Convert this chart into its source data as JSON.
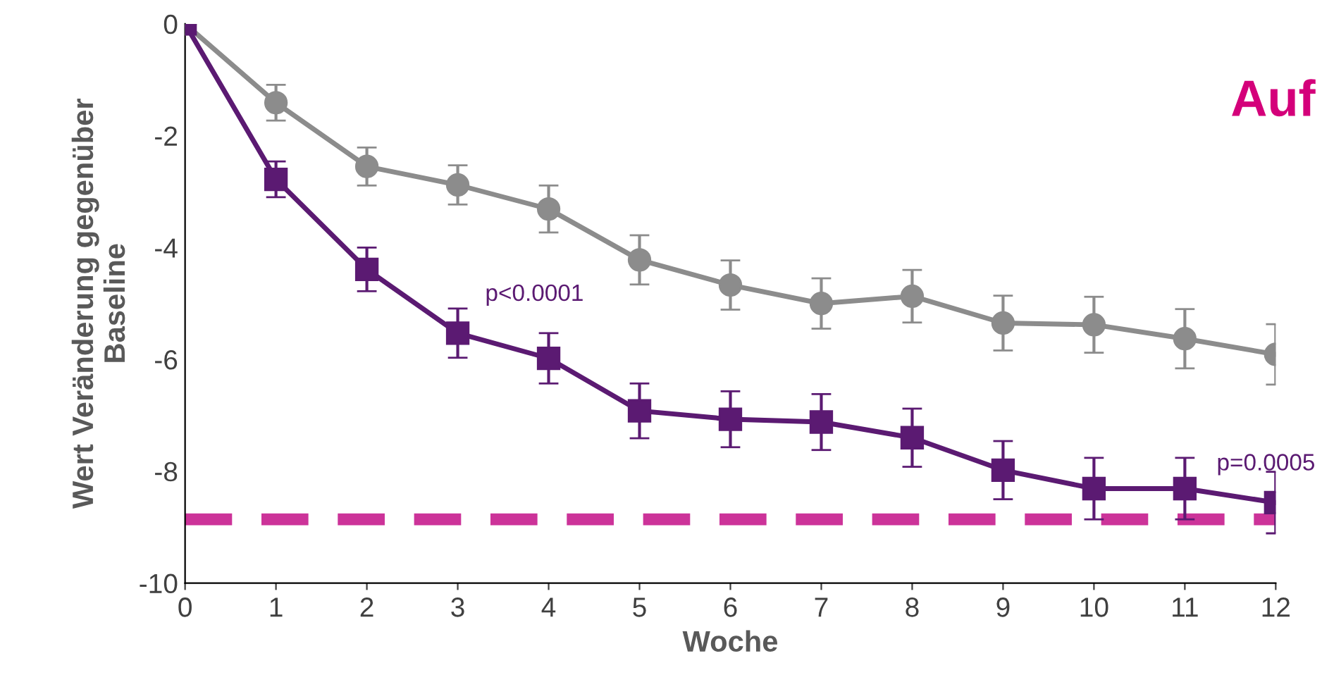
{
  "chart_data": {
    "type": "line",
    "xlabel": "Woche",
    "ylabel": "Wert Veränderung gegenüber\nBaseline",
    "x": [
      0,
      1,
      2,
      3,
      4,
      5,
      6,
      7,
      8,
      9,
      10,
      11,
      12
    ],
    "series": [
      {
        "color": "#8c8c8c",
        "marker": "circle",
        "values": [
          0,
          -1.41,
          -2.55,
          -2.88,
          -3.31,
          -4.22,
          -4.67,
          -5.0,
          -4.87,
          -5.35,
          -5.38,
          -5.63,
          -5.91
        ],
        "errors": [
          null,
          0.32,
          0.34,
          0.35,
          0.42,
          0.44,
          0.44,
          0.45,
          0.47,
          0.49,
          0.5,
          0.53,
          0.54
        ]
      },
      {
        "color": "#5b1a72",
        "marker": "square",
        "values": [
          0,
          -2.78,
          -4.39,
          -5.53,
          -5.98,
          -6.92,
          -7.07,
          -7.12,
          -7.4,
          -7.98,
          -8.31,
          -8.31,
          -8.56
        ],
        "errors": [
          null,
          0.32,
          0.39,
          0.44,
          0.45,
          0.49,
          0.5,
          0.5,
          0.52,
          0.52,
          0.55,
          0.55,
          0.55
        ]
      }
    ],
    "ref_lines": [
      {
        "axis": "y",
        "value": -8.86,
        "color": "#cc3399",
        "line_style": "dashed"
      }
    ],
    "annotations": [
      {
        "text": "p<0.0001",
        "x": 3,
        "y": -5.53
      },
      {
        "text": "p=0.0005",
        "x": 12,
        "y": -8.56
      },
      "Auf"
    ],
    "xlim": [
      0,
      12
    ],
    "ylim": [
      -10,
      0
    ],
    "xticks": [
      0,
      1,
      2,
      3,
      4,
      5,
      6,
      7,
      8,
      9,
      10,
      11,
      12
    ],
    "yticks": [
      -10,
      -8,
      -6,
      -4,
      -2,
      0
    ],
    "grid": false,
    "line_style": "solid"
  }
}
